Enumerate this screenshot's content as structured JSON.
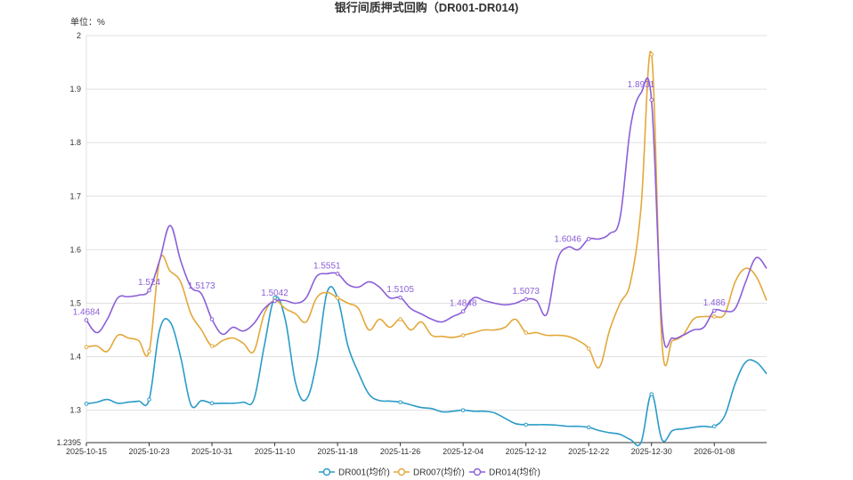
{
  "chart_data": {
    "type": "line",
    "title": "银行间质押式回购（DR001-DR014)",
    "unit_label": "单位：%",
    "ylim": [
      1.2395,
      2
    ],
    "y_ticks": [
      "2",
      "1.9",
      "1.8",
      "1.7",
      "1.6",
      "1.5",
      "1.4",
      "1.3",
      "1.2395"
    ],
    "x_ticks": [
      "2025-10-15",
      "2025-10-23",
      "2025-10-31",
      "2025-11-10",
      "2025-11-18",
      "2025-11-26",
      "2025-12-04",
      "2025-12-12",
      "2025-12-22",
      "2025-12-30",
      "2026-01-08"
    ],
    "grid": true,
    "legend_position": "bottom",
    "categories": [
      "2025-10-15",
      "2025-10-16",
      "2025-10-17",
      "2025-10-20",
      "2025-10-21",
      "2025-10-22",
      "2025-10-23",
      "2025-10-24",
      "2025-10-27",
      "2025-10-28",
      "2025-10-29",
      "2025-10-30",
      "2025-10-31",
      "2025-11-03",
      "2025-11-04",
      "2025-11-05",
      "2025-11-06",
      "2025-11-07",
      "2025-11-10",
      "2025-11-11",
      "2025-11-12",
      "2025-11-13",
      "2025-11-14",
      "2025-11-17",
      "2025-11-18",
      "2025-11-19",
      "2025-11-20",
      "2025-11-21",
      "2025-11-24",
      "2025-11-25",
      "2025-11-26",
      "2025-11-27",
      "2025-11-28",
      "2025-12-01",
      "2025-12-02",
      "2025-12-03",
      "2025-12-04",
      "2025-12-05",
      "2025-12-08",
      "2025-12-09",
      "2025-12-10",
      "2025-12-11",
      "2025-12-12",
      "2025-12-15",
      "2025-12-16",
      "2025-12-17",
      "2025-12-18",
      "2025-12-19",
      "2025-12-22",
      "2025-12-23",
      "2025-12-24",
      "2025-12-25",
      "2025-12-26",
      "2025-12-29",
      "2025-12-30",
      "2025-12-31",
      "2026-01-02",
      "2026-01-05",
      "2026-01-06",
      "2026-01-07",
      "2026-01-08",
      "2026-01-09",
      "2026-01-12",
      "2026-01-13",
      "2026-01-14",
      "2026-01-15"
    ],
    "series": [
      {
        "name": "DR001(均价)",
        "color": "#2a9bc8",
        "values": [
          1.312,
          1.315,
          1.32,
          1.313,
          1.315,
          1.317,
          1.32,
          1.45,
          1.465,
          1.4,
          1.31,
          1.318,
          1.313,
          1.313,
          1.313,
          1.315,
          1.32,
          1.42,
          1.51,
          1.47,
          1.35,
          1.32,
          1.39,
          1.52,
          1.51,
          1.42,
          1.37,
          1.33,
          1.318,
          1.317,
          1.315,
          1.31,
          1.305,
          1.303,
          1.297,
          1.298,
          1.3,
          1.298,
          1.298,
          1.295,
          1.285,
          1.275,
          1.273,
          1.273,
          1.273,
          1.272,
          1.27,
          1.27,
          1.268,
          1.262,
          1.258,
          1.255,
          1.245,
          1.24,
          1.33,
          1.245,
          1.262,
          1.265,
          1.268,
          1.27,
          1.27,
          1.29,
          1.35,
          1.39,
          1.39,
          1.368
        ]
      },
      {
        "name": "DR007(均价)",
        "color": "#e3a83a",
        "values": [
          1.418,
          1.42,
          1.41,
          1.44,
          1.435,
          1.43,
          1.41,
          1.58,
          1.56,
          1.54,
          1.48,
          1.45,
          1.42,
          1.43,
          1.435,
          1.425,
          1.41,
          1.48,
          1.505,
          1.49,
          1.48,
          1.465,
          1.51,
          1.52,
          1.51,
          1.5,
          1.49,
          1.45,
          1.47,
          1.455,
          1.47,
          1.45,
          1.465,
          1.44,
          1.438,
          1.436,
          1.44,
          1.445,
          1.45,
          1.45,
          1.455,
          1.47,
          1.445,
          1.445,
          1.44,
          1.44,
          1.438,
          1.43,
          1.415,
          1.38,
          1.45,
          1.5,
          1.54,
          1.68,
          1.965,
          1.425,
          1.43,
          1.44,
          1.47,
          1.475,
          1.475,
          1.48,
          1.54,
          1.565,
          1.55,
          1.505
        ]
      },
      {
        "name": "DR014(均价)",
        "color": "#8c5fd8",
        "values": [
          1.4684,
          1.445,
          1.47,
          1.51,
          1.512,
          1.515,
          1.524,
          1.58,
          1.645,
          1.58,
          1.53,
          1.5173,
          1.47,
          1.442,
          1.455,
          1.448,
          1.462,
          1.49,
          1.5042,
          1.505,
          1.5,
          1.51,
          1.55,
          1.5551,
          1.555,
          1.535,
          1.53,
          1.54,
          1.53,
          1.51,
          1.5105,
          1.49,
          1.48,
          1.47,
          1.465,
          1.475,
          1.4848,
          1.51,
          1.505,
          1.5,
          1.497,
          1.5,
          1.5073,
          1.505,
          1.48,
          1.58,
          1.6046,
          1.6,
          1.62,
          1.62,
          1.63,
          1.66,
          1.83,
          1.8931,
          1.88,
          1.46,
          1.435,
          1.44,
          1.45,
          1.455,
          1.486,
          1.485,
          1.49,
          1.54,
          1.585,
          1.565
        ]
      }
    ],
    "data_labels": [
      {
        "series": 2,
        "index": 0,
        "text": "1.4684"
      },
      {
        "series": 2,
        "index": 6,
        "text": "1.524"
      },
      {
        "series": 2,
        "index": 11,
        "text": "1.5173"
      },
      {
        "series": 2,
        "index": 18,
        "text": "1.5042"
      },
      {
        "series": 2,
        "index": 23,
        "text": "1.5551"
      },
      {
        "series": 2,
        "index": 30,
        "text": "1.5105"
      },
      {
        "series": 2,
        "index": 36,
        "text": "1.4848"
      },
      {
        "series": 2,
        "index": 42,
        "text": "1.5073"
      },
      {
        "series": 2,
        "index": 46,
        "text": "1.6046"
      },
      {
        "series": 2,
        "index": 53,
        "text": "1.8931"
      },
      {
        "series": 2,
        "index": 60,
        "text": "1.486"
      }
    ]
  }
}
